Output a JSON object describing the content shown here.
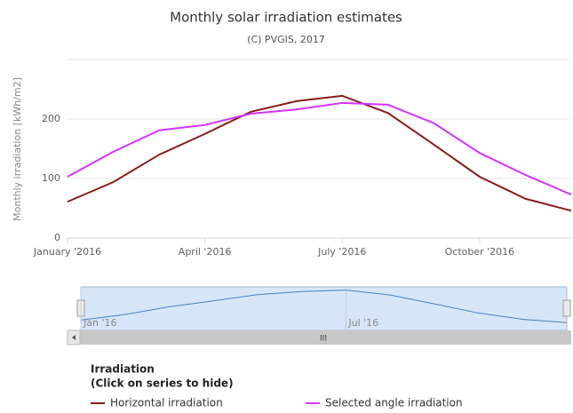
{
  "chart_data": {
    "type": "line",
    "title": "Monthly solar irradiation estimates",
    "subtitle": "(C) PVGIS, 2017",
    "y_label": "Monthly irradiation [kWh/m2]",
    "x": [
      "2016-01",
      "2016-02",
      "2016-03",
      "2016-04",
      "2016-05",
      "2016-06",
      "2016-07",
      "2016-08",
      "2016-09",
      "2016-10",
      "2016-11",
      "2016-12"
    ],
    "xticks": [
      {
        "value": "2016-01",
        "label": "January '2016"
      },
      {
        "value": "2016-04",
        "label": "April '2016"
      },
      {
        "value": "2016-07",
        "label": "July '2016"
      },
      {
        "value": "2016-10",
        "label": "October '2016"
      }
    ],
    "ylim": [
      0,
      300
    ],
    "yticks": [
      0,
      100,
      200
    ],
    "grid": true,
    "series": [
      {
        "name": "Horizontal irradiation",
        "color": "#8b1a1a",
        "values": [
          61,
          94,
          140,
          175,
          212,
          230,
          239,
          210,
          157,
          103,
          66,
          46
        ]
      },
      {
        "name": "Selected angle irradiation",
        "color": "#d633ff",
        "values": [
          103,
          145,
          181,
          190,
          209,
          216,
          227,
          224,
          193,
          143,
          106,
          73
        ]
      }
    ],
    "navigator_ticks": [
      {
        "value": "2016-01",
        "label": "Jan '16"
      },
      {
        "value": "2016-07",
        "label": "Jul '16"
      }
    ],
    "scrollbar_label": "III",
    "legend_title": "Irradiation",
    "legend_hint": "(Click on series to hide)"
  }
}
